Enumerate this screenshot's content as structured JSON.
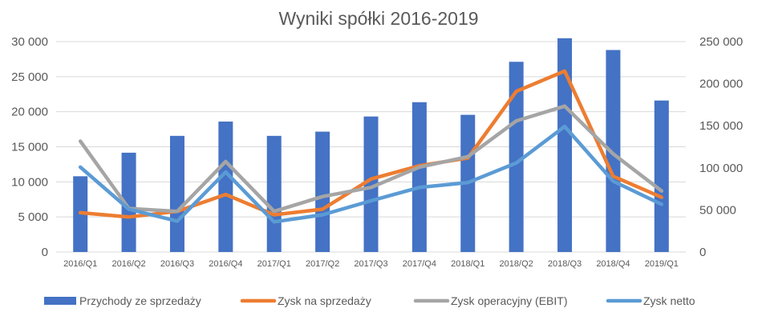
{
  "chart_data": {
    "type": "bar",
    "title": "Wyniki spółki 2016-2019",
    "categories": [
      "2016/Q1",
      "2016/Q2",
      "2016/Q3",
      "2016/Q4",
      "2017/Q1",
      "2017/Q2",
      "2017/Q3",
      "2017/Q4",
      "2018/Q1",
      "2018/Q2",
      "2018/Q3",
      "2018/Q4",
      "2019/Q1"
    ],
    "y_left": {
      "ylim": [
        0,
        30000
      ],
      "ticks": [
        0,
        5000,
        10000,
        15000,
        20000,
        25000,
        30000
      ],
      "tick_labels": [
        "0",
        "5 000",
        "10 000",
        "15 000",
        "20 000",
        "25 000",
        "30 000"
      ]
    },
    "y_right": {
      "ylim": [
        0,
        250000
      ],
      "ticks": [
        0,
        50000,
        100000,
        150000,
        200000,
        250000
      ],
      "tick_labels": [
        "0",
        "50 000",
        "100 000",
        "150 000",
        "200 000",
        "250 000"
      ]
    },
    "grid": true,
    "legend_position": "bottom",
    "series": [
      {
        "name": "Przychody ze sprzedaży",
        "kind": "bar",
        "axis": "right",
        "color": "#4472c4",
        "values": [
          90000,
          118000,
          138000,
          155000,
          138000,
          143000,
          161000,
          178000,
          163000,
          226000,
          254000,
          240000,
          180000
        ]
      },
      {
        "name": "Zysk na sprzedaży",
        "kind": "line",
        "axis": "left",
        "color": "#ed7d31",
        "values": [
          5600,
          5000,
          5800,
          8200,
          5300,
          6100,
          10400,
          12300,
          13400,
          22900,
          25800,
          10800,
          7800
        ]
      },
      {
        "name": "Zysk operacyjny (EBIT)",
        "kind": "line",
        "axis": "left",
        "color": "#a5a5a5",
        "values": [
          15800,
          6200,
          5800,
          12900,
          5800,
          7900,
          9200,
          12100,
          13600,
          18700,
          20800,
          14000,
          8700
        ]
      },
      {
        "name": "Zysk netto",
        "kind": "line",
        "axis": "left",
        "color": "#5b9bd5",
        "values": [
          12100,
          6100,
          4400,
          11400,
          4300,
          5300,
          7300,
          9200,
          9900,
          12700,
          17900,
          10100,
          6800
        ]
      }
    ]
  }
}
